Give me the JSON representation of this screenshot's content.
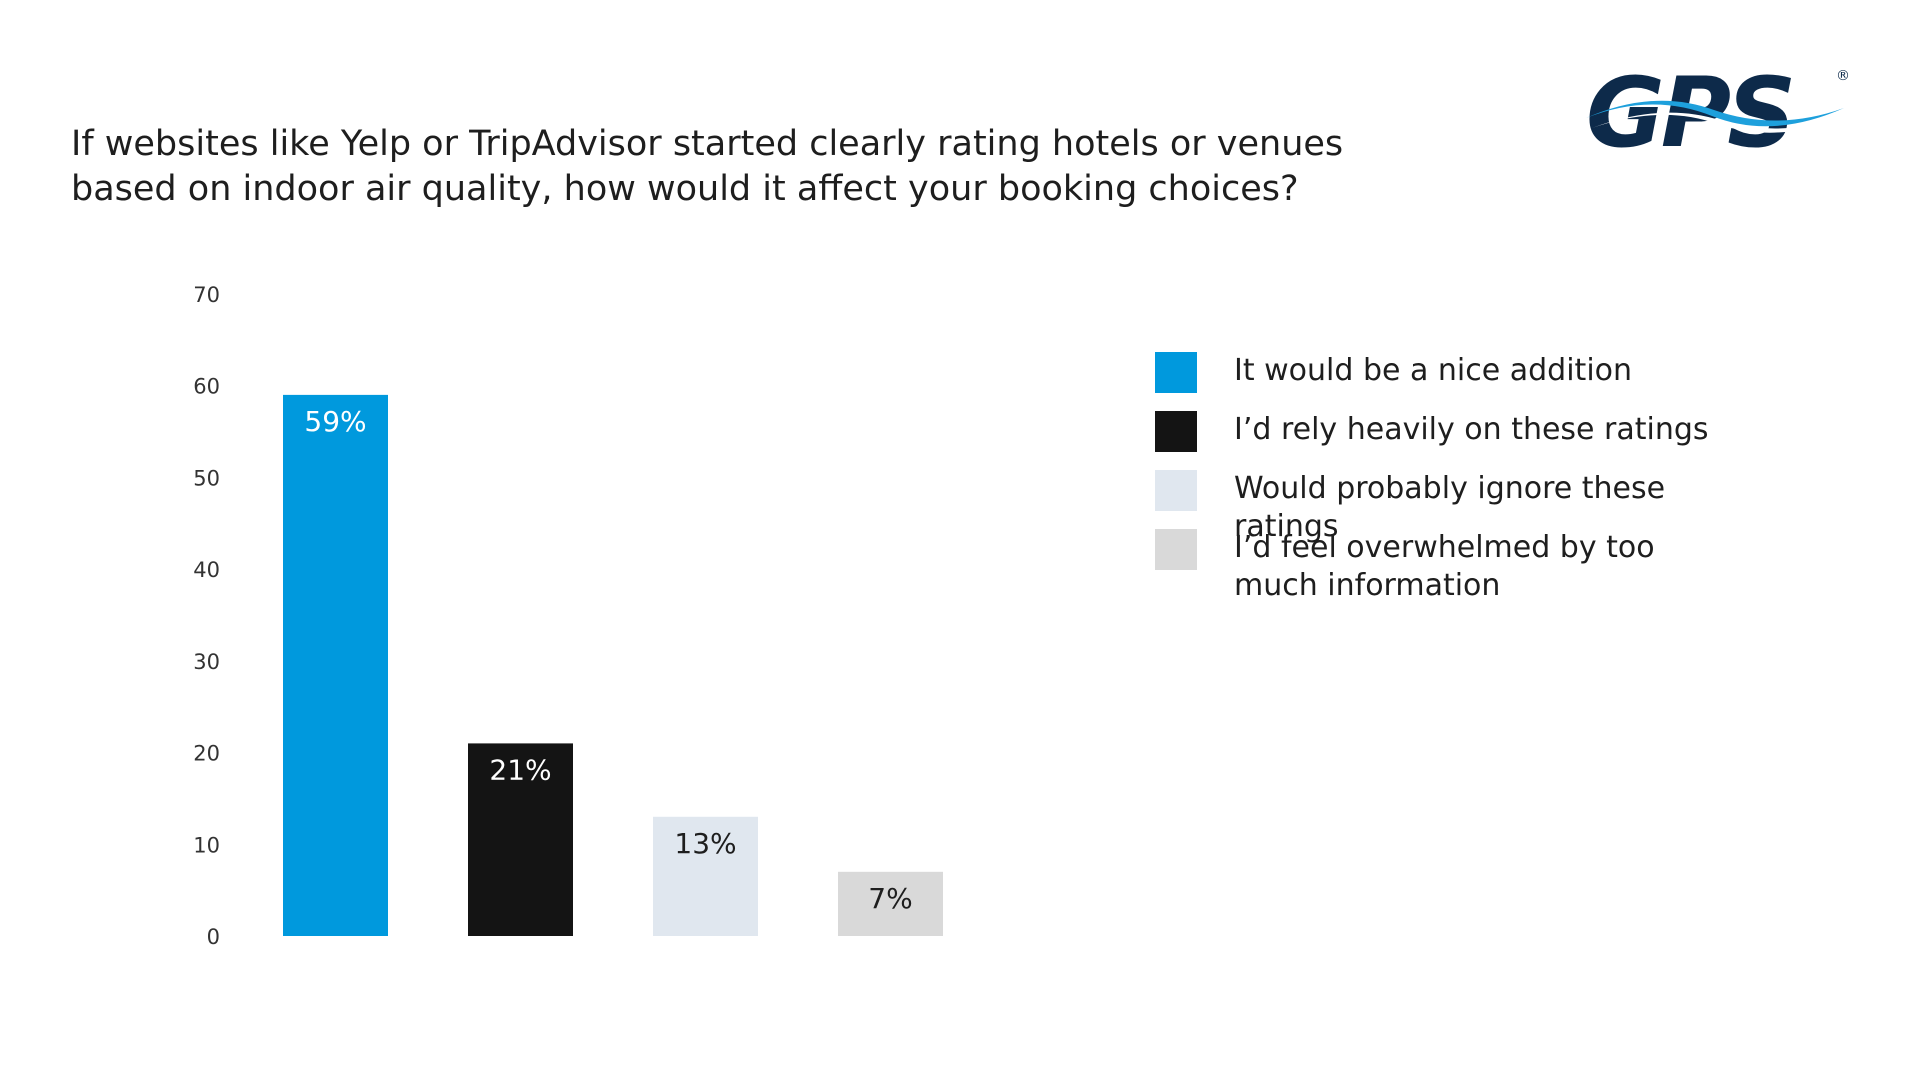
{
  "title_lines": [
    "If websites like Yelp or TripAdvisor started clearly rating hotels or venues",
    "based on indoor air quality, how would it affect your booking choices?"
  ],
  "logo": {
    "text": "GPS",
    "registered_mark": "®",
    "colors": {
      "text": "#0d2a4a",
      "swoosh": "#1ea0dc"
    }
  },
  "chart_data": {
    "type": "bar",
    "categories": [
      "It would be a nice addition",
      "I’d rely heavily on these ratings",
      "Would probably ignore these ratings",
      "I’d feel overwhelmed by too much information"
    ],
    "values": [
      59,
      21,
      13,
      7
    ],
    "data_labels": [
      "59%",
      "21%",
      "13%",
      "7%"
    ],
    "ylim": [
      0,
      70
    ],
    "yticks": [
      0,
      10,
      20,
      30,
      40,
      50,
      60,
      70
    ],
    "grid": false,
    "legend_placement": "right",
    "colors": [
      "#0099dd",
      "#141414",
      "#e0e7ef",
      "#d9d9d9"
    ],
    "label_colors": [
      "#ffffff",
      "#ffffff",
      "#1e1e1e",
      "#1e1e1e"
    ]
  },
  "legend": [
    {
      "label": "It would be a nice addition",
      "color": "#0099dd"
    },
    {
      "label": "I’d rely heavily on these ratings",
      "color": "#141414"
    },
    {
      "label": "Would probably ignore these ratings",
      "color": "#e0e7ef"
    },
    {
      "label": "I’d feel overwhelmed by too\nmuch information",
      "color": "#d9d9d9"
    }
  ]
}
